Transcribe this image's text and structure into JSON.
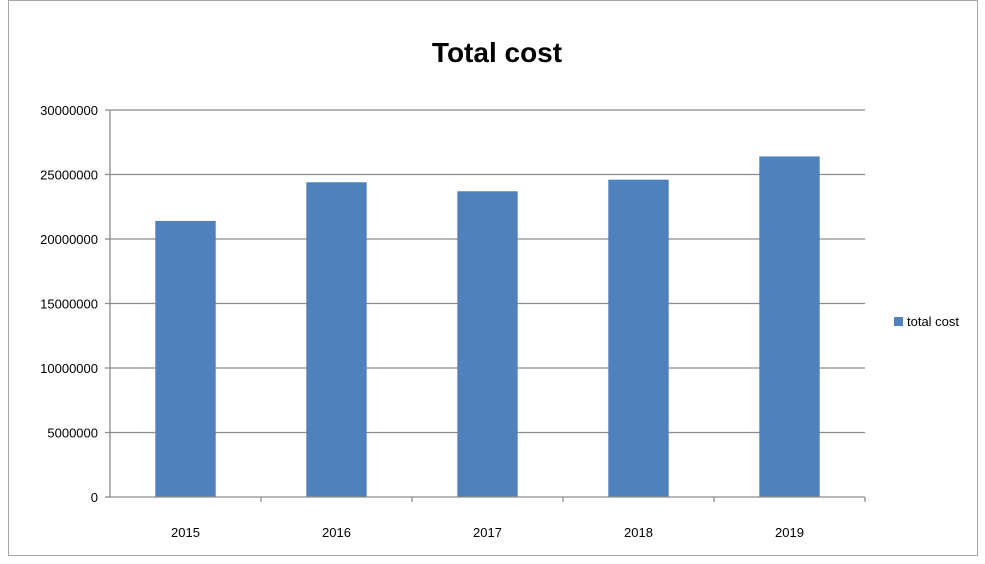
{
  "chart_data": {
    "type": "bar",
    "title": "Total cost",
    "xlabel": "",
    "ylabel": "",
    "categories": [
      "2015",
      "2016",
      "2017",
      "2018",
      "2019"
    ],
    "series": [
      {
        "name": "total cost",
        "values": [
          21400000,
          24400000,
          23700000,
          24600000,
          26400000
        ],
        "color": "#4f81bd"
      }
    ],
    "ylim": [
      0,
      30000000
    ],
    "yticks": [
      0,
      5000000,
      10000000,
      15000000,
      20000000,
      25000000,
      30000000
    ],
    "ytick_labels": [
      "0",
      "5000000",
      "10000000",
      "15000000",
      "20000000",
      "25000000",
      "30000000"
    ],
    "grid": true,
    "legend_position": "right",
    "gridline_color": "#8c8c8c"
  }
}
